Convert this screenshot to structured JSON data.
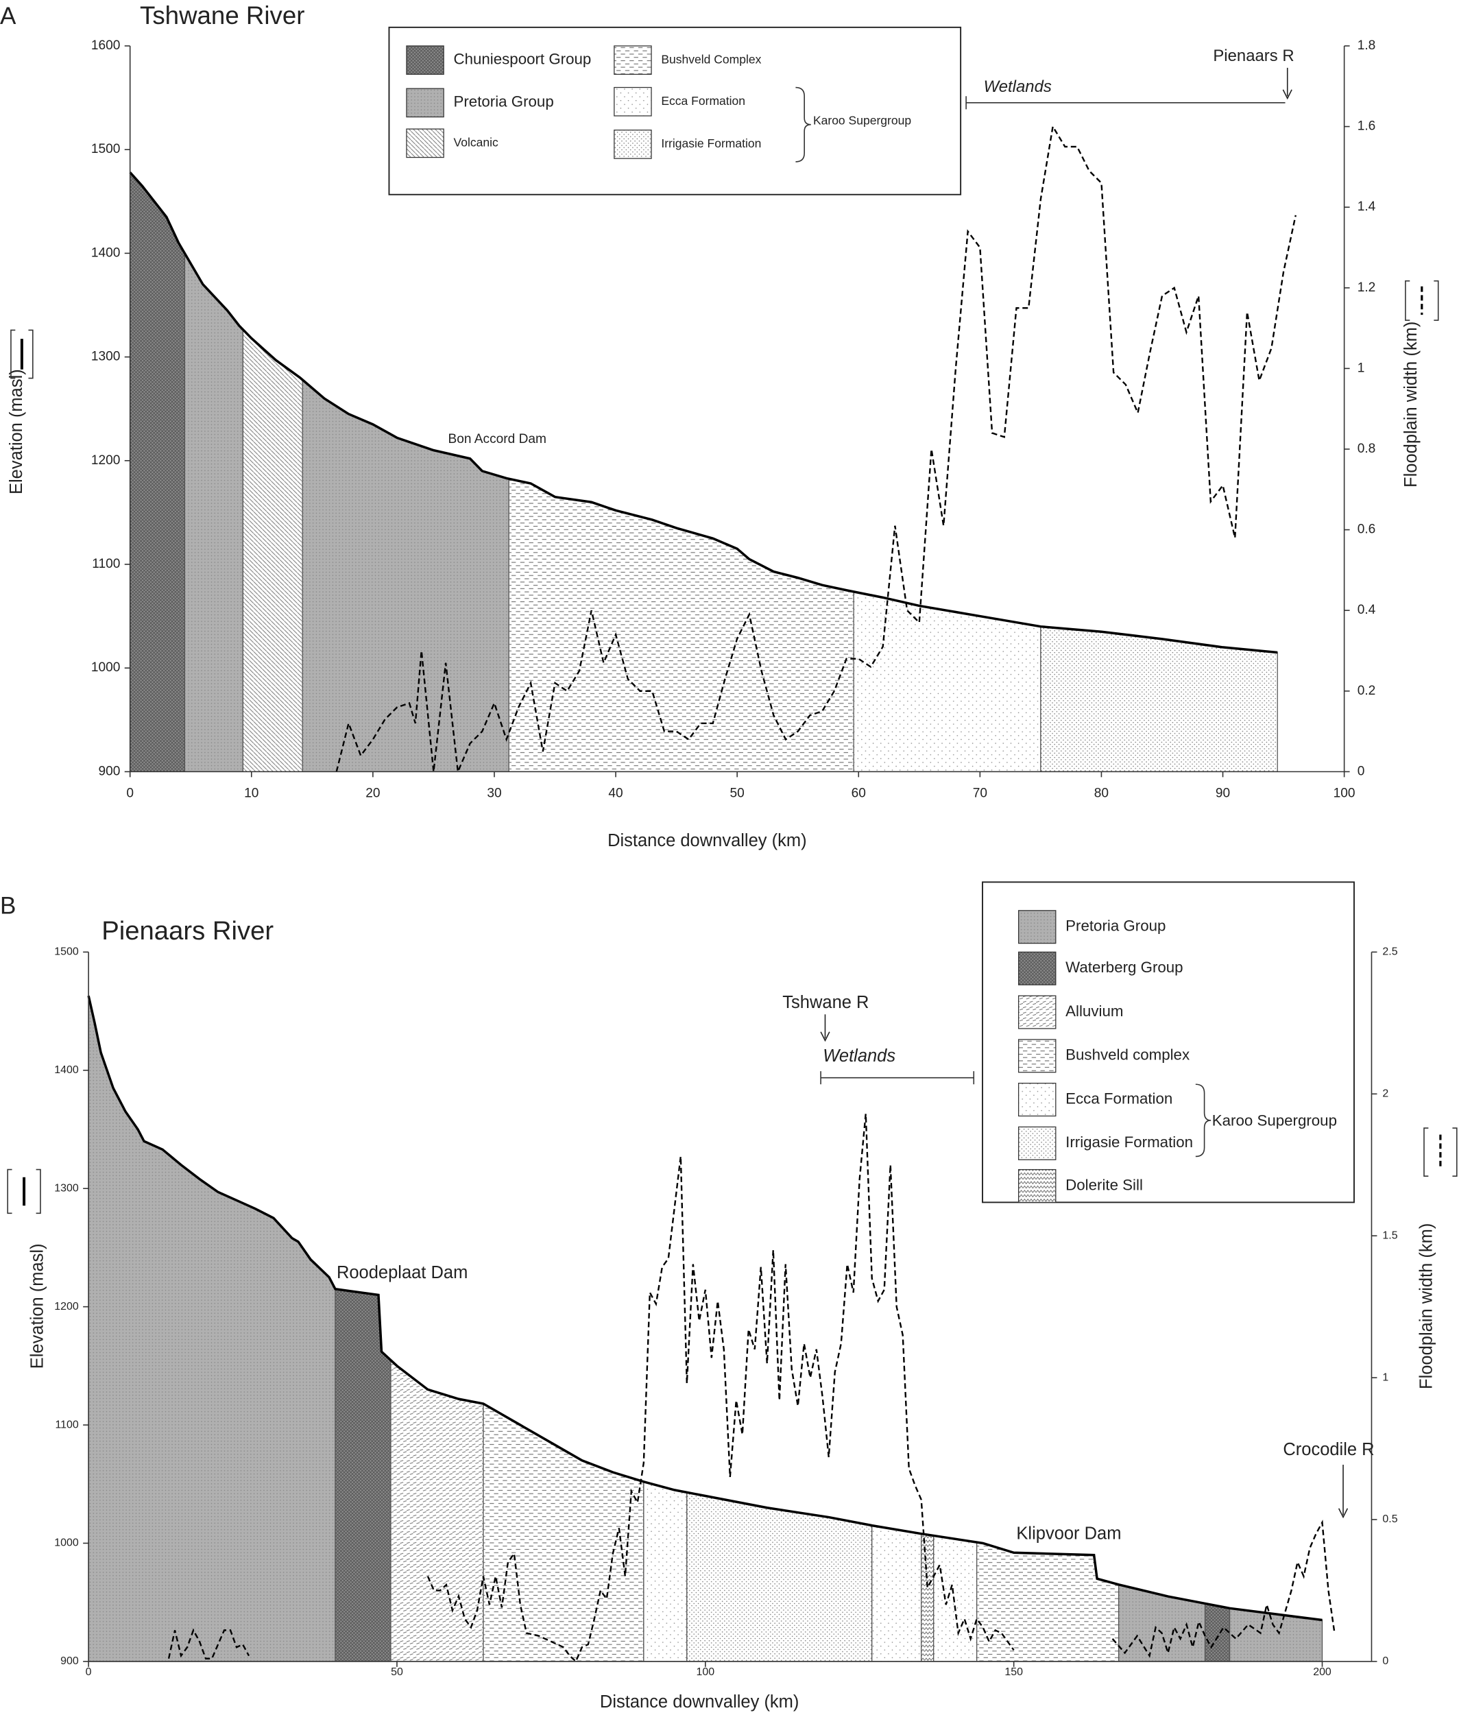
{
  "chart_data": [
    {
      "type": "profile",
      "panel": "A",
      "title": "Tshwane River",
      "xlabel": "Distance downvalley (km)",
      "ylabel": "Elevation (masl)",
      "y2label": "Floodplain width (km)",
      "xlim": [
        0,
        100
      ],
      "xticks": [
        0,
        10,
        20,
        30,
        40,
        50,
        60,
        70,
        80,
        90,
        100
      ],
      "ylim": [
        900,
        1600
      ],
      "yticks": [
        900,
        1000,
        1100,
        1200,
        1300,
        1400,
        1500,
        1600
      ],
      "y2lim": [
        0,
        1.8
      ],
      "y2ticks": [
        0,
        0.2,
        0.4,
        0.6,
        0.8,
        1,
        1.2,
        1.4,
        1.6,
        1.8
      ],
      "elevation": {
        "x": [
          0,
          1,
          3,
          4,
          5,
          6,
          8,
          9,
          10,
          12,
          14,
          16,
          18,
          20,
          22,
          25,
          28,
          29,
          31,
          33,
          35,
          38,
          40,
          43,
          45,
          48,
          50,
          51,
          53,
          55,
          57,
          59,
          62,
          65,
          70,
          75,
          80,
          85,
          90,
          94.5
        ],
        "values": [
          1478,
          1465,
          1435,
          1410,
          1390,
          1370,
          1345,
          1330,
          1318,
          1297,
          1280,
          1260,
          1245,
          1235,
          1222,
          1210,
          1202,
          1190,
          1183,
          1178,
          1165,
          1160,
          1152,
          1143,
          1135,
          1125,
          1115,
          1105,
          1093,
          1087,
          1080,
          1075,
          1068,
          1060,
          1050,
          1040,
          1035,
          1028,
          1020,
          1015
        ]
      },
      "floodplain_width": {
        "axis": "y2",
        "x": [
          17,
          18,
          19,
          20,
          21,
          22,
          23,
          23.5,
          24,
          25,
          26,
          27,
          28,
          29,
          30,
          31,
          32,
          33,
          34,
          35,
          36,
          37,
          38,
          39,
          40,
          41,
          42,
          43,
          44,
          45,
          46,
          47,
          48,
          49,
          50,
          51,
          52,
          53,
          54,
          55,
          56,
          57,
          58,
          59,
          60,
          61,
          62,
          63,
          64,
          65,
          66,
          67,
          68,
          69,
          70,
          71,
          72,
          73,
          74,
          75,
          76,
          77,
          78,
          79,
          80,
          81,
          82,
          83,
          84,
          85,
          86,
          87,
          88,
          89,
          90,
          91,
          92,
          93,
          94,
          95,
          96
        ],
        "values": [
          0,
          0.12,
          0.04,
          0.08,
          0.13,
          0.16,
          0.17,
          0.12,
          0.3,
          0,
          0.27,
          0,
          0.07,
          0.1,
          0.17,
          0.08,
          0.16,
          0.22,
          0.05,
          0.22,
          0.2,
          0.25,
          0.4,
          0.27,
          0.34,
          0.23,
          0.2,
          0.2,
          0.1,
          0.1,
          0.08,
          0.12,
          0.12,
          0.23,
          0.33,
          0.39,
          0.25,
          0.14,
          0.08,
          0.1,
          0.14,
          0.15,
          0.2,
          0.28,
          0.28,
          0.26,
          0.31,
          0.61,
          0.4,
          0.37,
          0.8,
          0.61,
          1.0,
          1.34,
          1.3,
          0.84,
          0.83,
          1.15,
          1.15,
          1.42,
          1.6,
          1.55,
          1.55,
          1.49,
          1.46,
          0.99,
          0.96,
          0.89,
          1.04,
          1.18,
          1.2,
          1.09,
          1.18,
          0.67,
          0.71,
          0.58,
          1.14,
          0.97,
          1.05,
          1.24,
          1.38
        ]
      },
      "legend": [
        {
          "name": "Chuniespoort Group",
          "pattern": "dark"
        },
        {
          "name": "Pretoria Group",
          "pattern": "grey"
        },
        {
          "name": "Volcanic",
          "pattern": "diag"
        },
        {
          "name": "Bushveld Complex",
          "pattern": "dash"
        },
        {
          "name": "Ecca Formation",
          "pattern": "sparse"
        },
        {
          "name": "Irrigasie Formation",
          "pattern": "dense"
        }
      ],
      "group_label": "Karoo Supergroup",
      "segments": [
        {
          "pattern": "dark",
          "start": 0,
          "end": 4.5
        },
        {
          "pattern": "grey",
          "start": 4.5,
          "end": 9.3
        },
        {
          "pattern": "diag",
          "start": 9.3,
          "end": 14.2
        },
        {
          "pattern": "grey",
          "start": 14.2,
          "end": 31.2
        },
        {
          "pattern": "dash",
          "start": 31.2,
          "end": 59.6
        },
        {
          "pattern": "sparse",
          "start": 59.6,
          "end": 75
        },
        {
          "pattern": "dense",
          "start": 75,
          "end": 94.5
        }
      ],
      "annotations": [
        "Bon Accord Dam",
        "Wetlands",
        "Pienaars R"
      ]
    },
    {
      "type": "profile",
      "panel": "B",
      "title": "Pienaars River",
      "xlabel": "Distance downvalley (km)",
      "ylabel": "Elevation (masl)",
      "y2label": "Floodplain width (km)",
      "xlim": [
        0,
        208
      ],
      "xticks": [
        0,
        50,
        100,
        150,
        200
      ],
      "ylim": [
        900,
        1500
      ],
      "yticks": [
        900,
        1000,
        1100,
        1200,
        1300,
        1400,
        1500
      ],
      "y2lim": [
        0,
        2.5
      ],
      "y2ticks": [
        0,
        0.5,
        1,
        1.5,
        2,
        2.5
      ],
      "elevation": {
        "x": [
          0,
          1,
          2,
          3,
          4,
          6,
          8,
          9,
          12,
          15,
          18,
          21,
          24,
          27,
          30,
          33,
          34,
          36,
          39,
          40,
          47,
          47.5,
          50,
          55,
          60,
          64,
          70,
          75,
          80,
          85,
          90,
          95,
          100,
          110,
          120,
          127,
          135,
          145,
          150,
          163,
          163.5,
          167,
          175,
          185,
          200
        ],
        "values": [
          1463,
          1440,
          1415,
          1400,
          1385,
          1365,
          1350,
          1340,
          1333,
          1320,
          1308,
          1297,
          1290,
          1283,
          1275,
          1258,
          1255,
          1240,
          1225,
          1215,
          1210,
          1162,
          1150,
          1130,
          1122,
          1118,
          1100,
          1085,
          1070,
          1060,
          1052,
          1045,
          1040,
          1030,
          1022,
          1015,
          1008,
          1000,
          992,
          990,
          970,
          965,
          955,
          945,
          935
        ]
      },
      "floodplain_width": {
        "axis": "y2",
        "x": [
          13,
          14,
          15,
          16,
          17,
          18,
          19,
          20,
          22,
          23,
          24,
          25,
          26,
          40,
          55,
          56,
          57,
          58,
          59,
          60,
          61,
          62,
          63,
          64,
          65,
          66,
          67,
          68,
          69,
          70,
          71,
          73,
          75,
          77,
          78,
          79,
          80,
          81,
          82,
          83,
          84,
          85,
          86,
          87,
          88,
          89,
          90,
          91,
          92,
          93,
          94,
          95,
          96,
          97,
          98,
          99,
          100,
          101,
          102,
          103,
          104,
          105,
          106,
          107,
          108,
          109,
          110,
          111,
          112,
          113,
          114,
          115,
          116,
          117,
          118,
          119,
          120,
          121,
          122,
          123,
          124,
          125,
          126,
          127,
          128,
          129,
          130,
          131,
          132,
          133,
          134,
          135,
          136,
          137,
          138,
          139,
          140,
          141,
          142,
          143,
          144,
          145,
          146,
          147,
          148,
          149,
          150,
          158,
          166,
          168,
          170,
          172,
          173,
          174,
          175,
          176,
          177,
          178,
          179,
          180,
          181,
          182,
          184,
          186,
          188,
          190,
          191,
          192,
          193,
          195,
          196,
          197,
          198,
          199,
          200,
          201,
          202
        ],
        "values": [
          0.01,
          0.11,
          0.02,
          0.05,
          0.11,
          0.07,
          0.01,
          0.01,
          0.11,
          0.11,
          0.05,
          0.06,
          0.02,
          null,
          0.3,
          0.25,
          0.25,
          0.27,
          0.18,
          0.23,
          0.15,
          0.12,
          0.18,
          0.3,
          0.2,
          0.3,
          0.19,
          0.35,
          0.38,
          0.2,
          0.1,
          0.09,
          0.07,
          0.05,
          0.02,
          0,
          0.05,
          0.06,
          0.15,
          0.25,
          0.22,
          0.38,
          0.47,
          0.3,
          0.6,
          0.56,
          0.7,
          1.3,
          1.26,
          1.39,
          1.42,
          1.6,
          1.78,
          0.98,
          1.4,
          1.2,
          1.31,
          1.07,
          1.27,
          1.1,
          0.65,
          0.92,
          0.8,
          1.17,
          1.1,
          1.39,
          1.05,
          1.45,
          0.92,
          1.4,
          1.03,
          0.9,
          1.12,
          1.0,
          1.1,
          0.93,
          0.72,
          1.02,
          1.12,
          1.4,
          1.3,
          1.7,
          1.93,
          1.35,
          1.27,
          1.31,
          1.75,
          1.25,
          1.15,
          0.68,
          0.62,
          0.57,
          0.26,
          0.3,
          0.34,
          0.2,
          0.27,
          0.1,
          0.15,
          0.08,
          0.15,
          0.12,
          0.07,
          0.11,
          0.1,
          0.07,
          0.04,
          null,
          0.08,
          0.03,
          0.09,
          0.02,
          0.12,
          0.1,
          0.03,
          0.12,
          0.08,
          0.13,
          0.05,
          0.14,
          0.09,
          0.05,
          0.12,
          0.08,
          0.13,
          0.1,
          0.2,
          0.13,
          0.1,
          0.25,
          0.35,
          0.3,
          0.4,
          0.45,
          0.49,
          0.25,
          0.1
        ]
      },
      "legend": [
        {
          "name": "Pretoria Group",
          "pattern": "grey"
        },
        {
          "name": "Waterberg Group",
          "pattern": "dark"
        },
        {
          "name": "Alluvium",
          "pattern": "alluv"
        },
        {
          "name": "Bushveld complex",
          "pattern": "dash"
        },
        {
          "name": "Ecca Formation",
          "pattern": "sparse"
        },
        {
          "name": "Irrigasie Formation",
          "pattern": "dense"
        },
        {
          "name": "Dolerite Sill",
          "pattern": "zigzag"
        }
      ],
      "group_label": "Karoo Supergroup",
      "segments": [
        {
          "pattern": "grey",
          "start": 0,
          "end": 40
        },
        {
          "pattern": "dark",
          "start": 40,
          "end": 49
        },
        {
          "pattern": "alluv",
          "start": 49,
          "end": 64
        },
        {
          "pattern": "dash",
          "start": 64,
          "end": 90
        },
        {
          "pattern": "sparse",
          "start": 90,
          "end": 97
        },
        {
          "pattern": "dense",
          "start": 97,
          "end": 127
        },
        {
          "pattern": "sparse",
          "start": 127,
          "end": 135
        },
        {
          "pattern": "zigzag",
          "start": 135,
          "end": 137
        },
        {
          "pattern": "sparse",
          "start": 137,
          "end": 144
        },
        {
          "pattern": "dash",
          "start": 144,
          "end": 167
        },
        {
          "pattern": "grey",
          "start": 167,
          "end": 181
        },
        {
          "pattern": "dark",
          "start": 181,
          "end": 185
        },
        {
          "pattern": "grey",
          "start": 185,
          "end": 200
        }
      ],
      "annotations": [
        "Tshwane R",
        "Wetlands",
        "Roodeplaat Dam",
        "Klipvoor Dam",
        "Crocodile R"
      ]
    }
  ]
}
